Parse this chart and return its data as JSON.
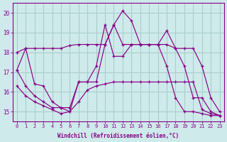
{
  "xlabel": "Windchill (Refroidissement éolien,°C)",
  "x_values": [
    0,
    1,
    2,
    3,
    4,
    5,
    6,
    7,
    8,
    9,
    10,
    11,
    12,
    13,
    14,
    15,
    16,
    17,
    18,
    19,
    20,
    21,
    22,
    23
  ],
  "line_upper": [
    18.0,
    18.2,
    18.2,
    18.2,
    18.2,
    18.2,
    18.35,
    18.4,
    18.4,
    18.4,
    18.4,
    19.4,
    18.4,
    18.4,
    18.4,
    18.4,
    18.4,
    18.4,
    18.2,
    18.2,
    18.2,
    17.3,
    15.7,
    15.0
  ],
  "line_jagged": [
    17.1,
    18.2,
    16.4,
    16.3,
    15.5,
    15.2,
    15.2,
    16.5,
    16.5,
    16.5,
    18.4,
    19.4,
    20.1,
    19.6,
    18.4,
    18.4,
    18.4,
    19.1,
    18.2,
    17.3,
    15.7,
    15.7,
    15.0,
    14.8
  ],
  "line_mid": [
    17.1,
    16.3,
    15.8,
    15.5,
    15.2,
    15.2,
    15.0,
    16.5,
    16.5,
    17.3,
    19.4,
    17.8,
    17.8,
    18.4,
    18.4,
    18.4,
    18.4,
    17.3,
    15.7,
    15.0,
    15.0,
    14.9,
    14.8,
    14.8
  ],
  "line_lower": [
    16.3,
    15.8,
    15.5,
    15.3,
    15.1,
    14.9,
    15.0,
    15.5,
    16.1,
    16.3,
    16.4,
    16.5,
    16.5,
    16.5,
    16.5,
    16.5,
    16.5,
    16.5,
    16.5,
    16.5,
    16.5,
    15.1,
    14.9,
    14.8
  ],
  "bg_color": "#ceeaea",
  "grid_color": "#aacece",
  "line_color": "#880088",
  "ylim": [
    14.5,
    20.5
  ],
  "xlim": [
    -0.5,
    23.5
  ],
  "yticks": [
    15,
    16,
    17,
    18,
    19,
    20
  ],
  "xticks": [
    0,
    1,
    2,
    3,
    4,
    5,
    6,
    7,
    8,
    9,
    10,
    11,
    12,
    13,
    14,
    15,
    16,
    17,
    18,
    19,
    20,
    21,
    22,
    23
  ]
}
